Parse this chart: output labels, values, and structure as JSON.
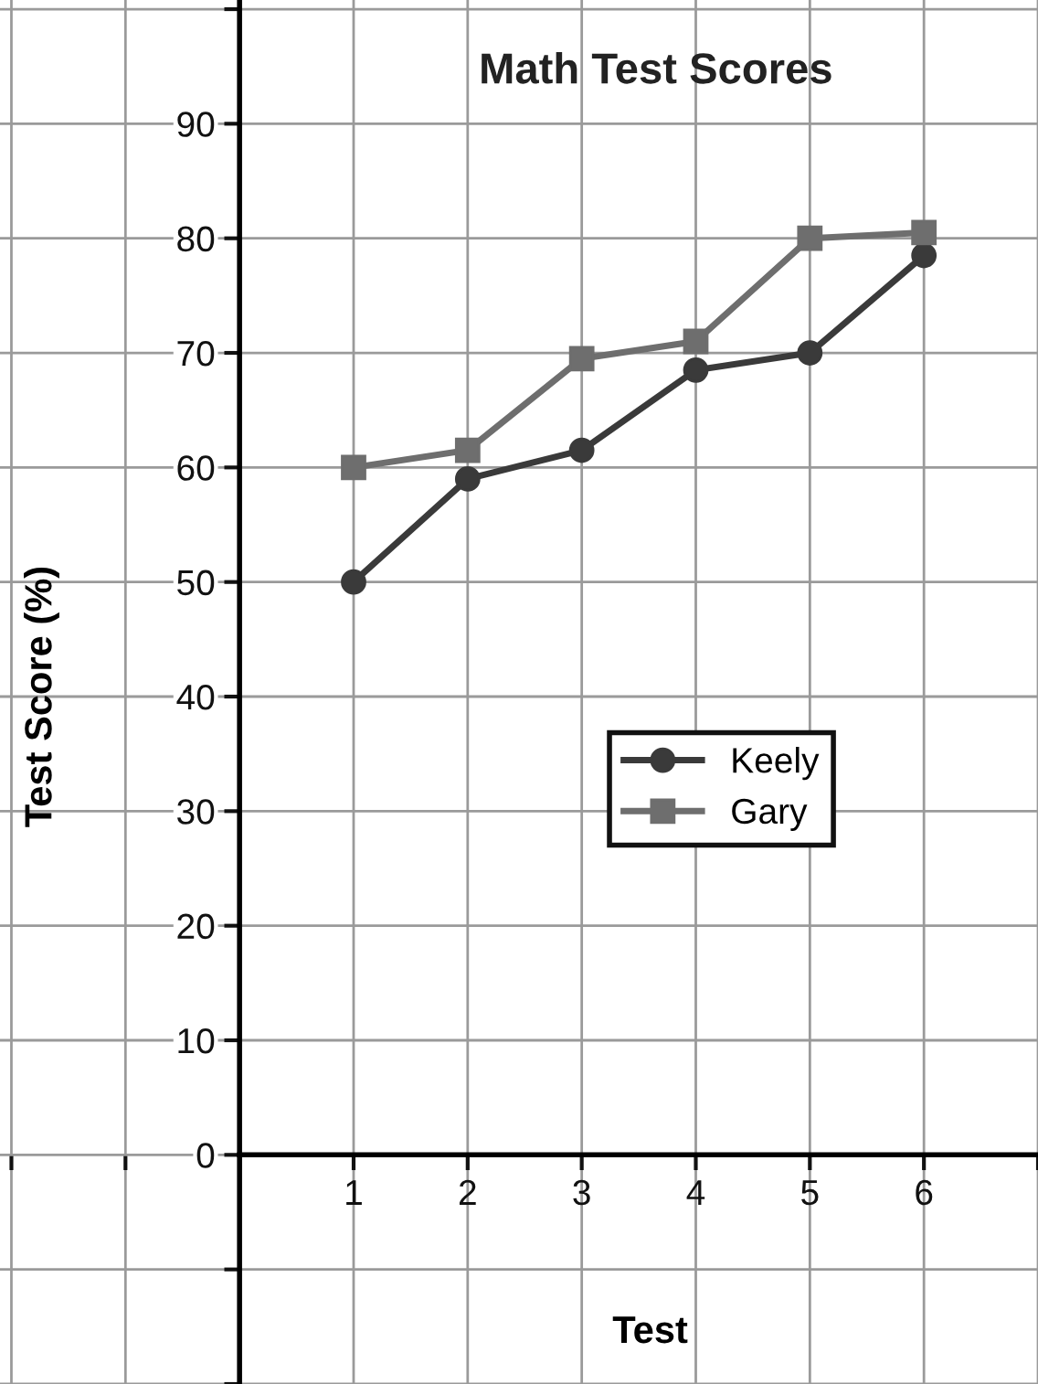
{
  "chart_data": {
    "type": "line",
    "title": "Math Test Scores",
    "xlabel": "Test",
    "ylabel": "Test Score (%)",
    "x": [
      1,
      2,
      3,
      4,
      5,
      6
    ],
    "series": [
      {
        "name": "Keely",
        "color": "#3a3a3a",
        "marker": "circle",
        "values": [
          50,
          59,
          61.5,
          68.5,
          70,
          78.5
        ]
      },
      {
        "name": "Gary",
        "color": "#6e6e6e",
        "marker": "square",
        "values": [
          60,
          61.5,
          69.5,
          71,
          80,
          80.5
        ]
      }
    ],
    "xlim": [
      -2.1,
      7.0
    ],
    "ylim": [
      -20,
      100.8
    ],
    "xticks": [
      {
        "value": -2,
        "label": null
      },
      {
        "value": -1,
        "label": null
      },
      {
        "value": 0,
        "label": null
      },
      1,
      2,
      3,
      4,
      5,
      6,
      {
        "value": 7,
        "label": null
      }
    ],
    "yticks": [
      {
        "value": -20,
        "label": null
      },
      {
        "value": -10,
        "label": null
      },
      0,
      10,
      20,
      30,
      40,
      50,
      60,
      70,
      80,
      90,
      {
        "value": 100,
        "label": null
      }
    ],
    "grid": true,
    "legend": "center right",
    "line_style": "solid"
  }
}
